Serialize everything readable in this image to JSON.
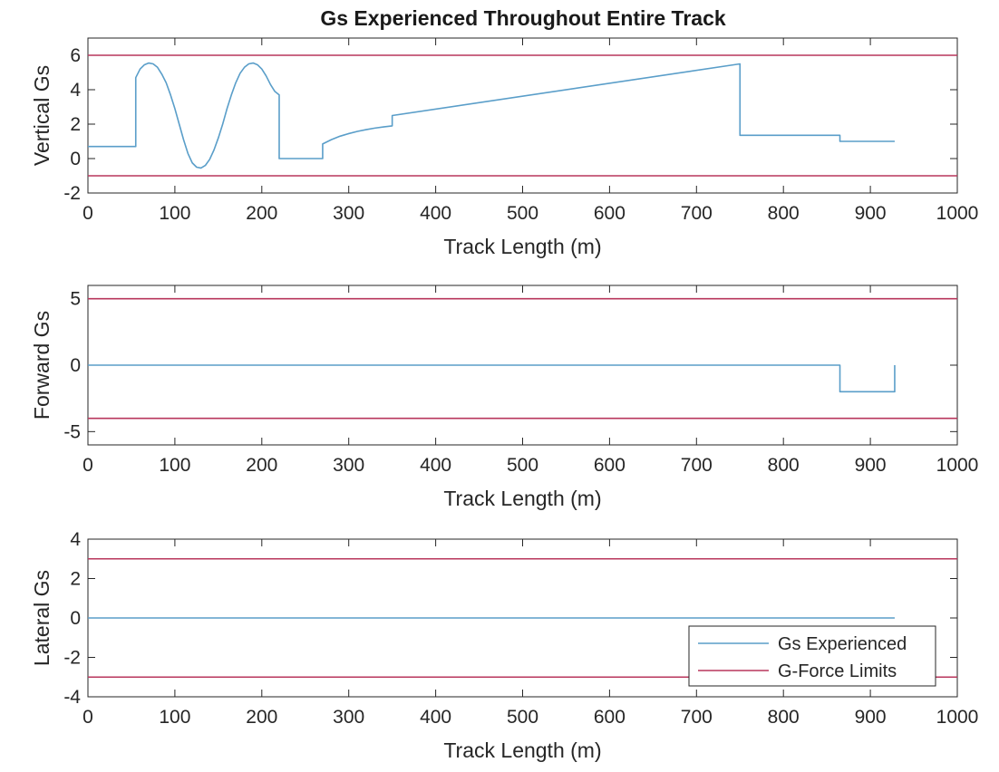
{
  "figure": {
    "title": "Gs Experienced Throughout Entire Track",
    "colors": {
      "experienced": "#5a9ec9",
      "limits": "#b8365c",
      "axes": "#262626",
      "background": "#ffffff"
    }
  },
  "legend": {
    "placement": "bottom-right of third subplot",
    "entries": [
      "Gs Experienced",
      "G-Force Limits"
    ]
  },
  "chart_data": [
    {
      "type": "line",
      "title": "Gs Experienced Throughout Entire Track",
      "xlabel": "Track Length (m)",
      "ylabel": "Vertical Gs",
      "xlim": [
        0,
        1000
      ],
      "ylim": [
        -2,
        7
      ],
      "xticks": [
        0,
        100,
        200,
        300,
        400,
        500,
        600,
        700,
        800,
        900,
        1000
      ],
      "yticks": [
        -2,
        0,
        2,
        4,
        6
      ],
      "grid": false,
      "series": [
        {
          "name": "Gs Experienced",
          "x": [
            0,
            55,
            55,
            60,
            65,
            70,
            75,
            80,
            85,
            90,
            95,
            100,
            105,
            110,
            115,
            120,
            125,
            130,
            135,
            140,
            145,
            150,
            155,
            160,
            165,
            170,
            175,
            180,
            185,
            190,
            195,
            200,
            205,
            210,
            215,
            220,
            220,
            270,
            270,
            280,
            290,
            300,
            310,
            320,
            330,
            340,
            350,
            350,
            750,
            750,
            865,
            865,
            928
          ],
          "y": [
            0.7,
            0.7,
            4.7,
            5.2,
            5.45,
            5.55,
            5.5,
            5.3,
            4.9,
            4.4,
            3.7,
            2.9,
            2.0,
            1.1,
            0.3,
            -0.25,
            -0.5,
            -0.55,
            -0.4,
            -0.05,
            0.5,
            1.2,
            2.0,
            2.9,
            3.7,
            4.4,
            4.95,
            5.3,
            5.5,
            5.55,
            5.45,
            5.2,
            4.8,
            4.3,
            3.9,
            3.7,
            0.0,
            0.0,
            0.85,
            1.1,
            1.3,
            1.45,
            1.58,
            1.68,
            1.77,
            1.84,
            1.9,
            2.5,
            5.5,
            1.35,
            1.35,
            1.0,
            1.0
          ]
        },
        {
          "name": "G-Force Limits",
          "lines": [
            {
              "x": [
                0,
                1000
              ],
              "y": [
                6,
                6
              ]
            },
            {
              "x": [
                0,
                1000
              ],
              "y": [
                -1,
                -1
              ]
            }
          ]
        }
      ]
    },
    {
      "type": "line",
      "xlabel": "Track Length (m)",
      "ylabel": "Forward Gs",
      "xlim": [
        0,
        1000
      ],
      "ylim": [
        -6,
        6
      ],
      "xticks": [
        0,
        100,
        200,
        300,
        400,
        500,
        600,
        700,
        800,
        900,
        1000
      ],
      "yticks": [
        -5,
        0,
        5
      ],
      "grid": false,
      "series": [
        {
          "name": "Gs Experienced",
          "x": [
            0,
            865,
            865,
            928,
            928
          ],
          "y": [
            0,
            0,
            -2,
            -2,
            0
          ]
        },
        {
          "name": "G-Force Limits",
          "lines": [
            {
              "x": [
                0,
                1000
              ],
              "y": [
                5,
                5
              ]
            },
            {
              "x": [
                0,
                1000
              ],
              "y": [
                -4,
                -4
              ]
            }
          ]
        }
      ]
    },
    {
      "type": "line",
      "xlabel": "Track Length (m)",
      "ylabel": "Lateral Gs",
      "xlim": [
        0,
        1000
      ],
      "ylim": [
        -4,
        4
      ],
      "xticks": [
        0,
        100,
        200,
        300,
        400,
        500,
        600,
        700,
        800,
        900,
        1000
      ],
      "yticks": [
        -4,
        -2,
        0,
        2,
        4
      ],
      "grid": false,
      "series": [
        {
          "name": "Gs Experienced",
          "x": [
            0,
            928
          ],
          "y": [
            0,
            0
          ]
        },
        {
          "name": "G-Force Limits",
          "lines": [
            {
              "x": [
                0,
                1000
              ],
              "y": [
                3,
                3
              ]
            },
            {
              "x": [
                0,
                1000
              ],
              "y": [
                -3,
                -3
              ]
            }
          ]
        }
      ]
    }
  ]
}
